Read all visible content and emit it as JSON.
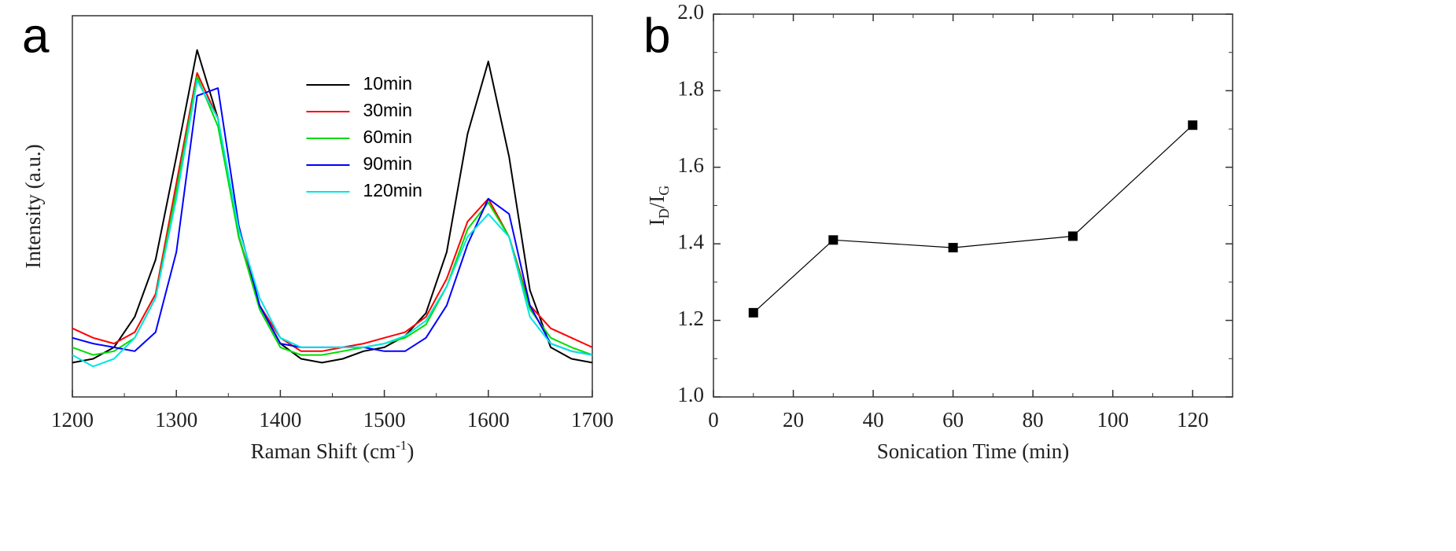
{
  "chart_data": [
    {
      "type": "line",
      "panel_label": "a",
      "x_label_parts": [
        "Raman Shift (cm",
        "-1",
        ")"
      ],
      "y_label": "Intensity (a.u.)",
      "x": [
        1200,
        1220,
        1240,
        1260,
        1280,
        1300,
        1320,
        1340,
        1360,
        1380,
        1400,
        1420,
        1440,
        1460,
        1480,
        1500,
        1520,
        1540,
        1560,
        1580,
        1600,
        1620,
        1640,
        1660,
        1680,
        1700
      ],
      "xlim": [
        1200,
        1700
      ],
      "xticks": [
        1200,
        1300,
        1400,
        1500,
        1600,
        1700
      ],
      "ylim": [
        0,
        1
      ],
      "legend": "upper center",
      "series": [
        {
          "name": "10min",
          "color": "#000000",
          "values": [
            0.09,
            0.1,
            0.13,
            0.21,
            0.36,
            0.63,
            0.91,
            0.73,
            0.42,
            0.24,
            0.14,
            0.1,
            0.09,
            0.1,
            0.12,
            0.13,
            0.16,
            0.22,
            0.38,
            0.69,
            0.88,
            0.63,
            0.28,
            0.13,
            0.1,
            0.09
          ]
        },
        {
          "name": "30min",
          "color": "#ff0000",
          "values": [
            0.18,
            0.155,
            0.14,
            0.17,
            0.27,
            0.56,
            0.85,
            0.73,
            0.42,
            0.24,
            0.155,
            0.12,
            0.12,
            0.13,
            0.14,
            0.155,
            0.17,
            0.21,
            0.31,
            0.46,
            0.52,
            0.42,
            0.24,
            0.18,
            0.155,
            0.13
          ]
        },
        {
          "name": "60min",
          "color": "#00dd00",
          "values": [
            0.13,
            0.11,
            0.12,
            0.155,
            0.26,
            0.54,
            0.84,
            0.71,
            0.42,
            0.23,
            0.13,
            0.11,
            0.11,
            0.12,
            0.13,
            0.14,
            0.155,
            0.19,
            0.29,
            0.44,
            0.51,
            0.42,
            0.23,
            0.155,
            0.13,
            0.11
          ]
        },
        {
          "name": "90min",
          "color": "#0000ff",
          "values": [
            0.155,
            0.14,
            0.13,
            0.12,
            0.17,
            0.38,
            0.79,
            0.81,
            0.45,
            0.24,
            0.14,
            0.13,
            0.13,
            0.13,
            0.13,
            0.12,
            0.12,
            0.155,
            0.24,
            0.4,
            0.52,
            0.48,
            0.24,
            0.14,
            0.12,
            0.11
          ]
        },
        {
          "name": "120min",
          "color": "#00e5e5",
          "values": [
            0.11,
            0.08,
            0.1,
            0.155,
            0.26,
            0.52,
            0.83,
            0.73,
            0.44,
            0.26,
            0.155,
            0.13,
            0.13,
            0.13,
            0.13,
            0.14,
            0.16,
            0.2,
            0.29,
            0.42,
            0.48,
            0.42,
            0.21,
            0.14,
            0.12,
            0.11
          ]
        }
      ]
    },
    {
      "type": "line",
      "panel_label": "b",
      "marker": "square",
      "x_label": "Sonication Time (min)",
      "y_label_parts": [
        "I",
        "D",
        "/I",
        "G"
      ],
      "x": [
        10,
        30,
        60,
        90,
        120
      ],
      "values": [
        1.22,
        1.41,
        1.39,
        1.42,
        1.71
      ],
      "color": "#000000",
      "xlim": [
        0,
        130
      ],
      "xticks": [
        0,
        20,
        40,
        60,
        80,
        100,
        120
      ],
      "ylim": [
        1,
        2
      ],
      "yticks": [
        {
          "value": 1,
          "label": "1.0"
        },
        1.2,
        1.4,
        1.6,
        1.8,
        {
          "value": 2,
          "label": "2.0"
        }
      ]
    }
  ]
}
